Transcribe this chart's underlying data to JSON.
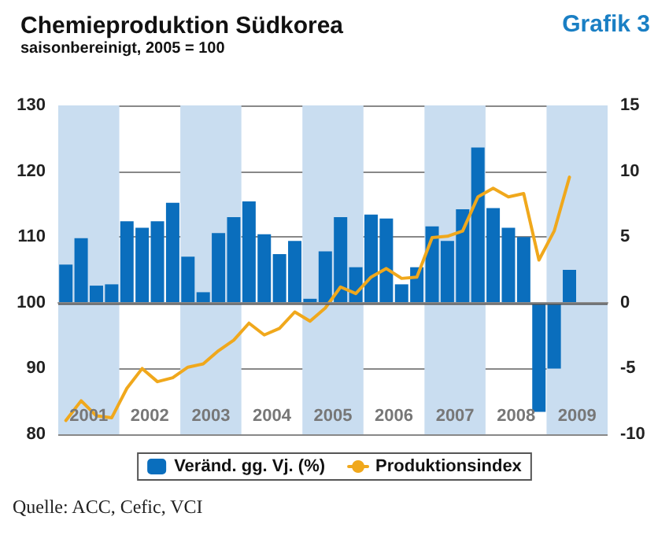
{
  "chart_data": {
    "type": "bar",
    "title": "Chemieproduktion Südkorea",
    "subtitle": "saisonbereinigt, 2005 = 100",
    "annotations": [
      "Grafik 3",
      "Quelle: ACC, Cefic, VCI"
    ],
    "x": [
      2001.125,
      2001.375,
      2001.625,
      2001.875,
      2002.125,
      2002.375,
      2002.625,
      2002.875,
      2003.125,
      2003.375,
      2003.625,
      2003.875,
      2004.125,
      2004.375,
      2004.625,
      2004.875,
      2005.125,
      2005.375,
      2005.625,
      2005.875,
      2006.125,
      2006.375,
      2006.625,
      2006.875,
      2007.125,
      2007.375,
      2007.625,
      2007.875,
      2008.125,
      2008.375,
      2008.625,
      2008.875,
      2009.125,
      2009.375
    ],
    "series": [
      {
        "name": "Veränd. gg. Vj. (%)",
        "axis": "y2",
        "color": "#0a6ebd",
        "values": [
          2.9,
          4.9,
          1.3,
          1.4,
          6.2,
          5.7,
          6.2,
          7.6,
          3.5,
          0.8,
          5.3,
          6.5,
          7.7,
          5.2,
          3.7,
          4.7,
          0.3,
          3.9,
          6.5,
          2.7,
          6.7,
          6.4,
          1.4,
          2.7,
          5.8,
          4.7,
          7.1,
          11.8,
          7.2,
          5.7,
          5.0,
          -8.3,
          -5.0,
          2.5
        ]
      },
      {
        "name": "Produktionsindex",
        "type": "line",
        "color": "#f0a81c",
        "line_style": "solid",
        "marker": "none",
        "values": [
          82.1,
          85.1,
          82.8,
          82.5,
          87.0,
          90.0,
          88.0,
          88.6,
          90.2,
          90.7,
          92.7,
          94.3,
          96.9,
          95.1,
          96.1,
          98.6,
          97.2,
          99.2,
          102.4,
          101.4,
          103.9,
          105.2,
          103.7,
          103.9,
          109.9,
          110.1,
          110.9,
          116.1,
          117.4,
          116.1,
          116.6,
          106.5,
          110.9,
          119.1
        ]
      }
    ],
    "xlim": [
      2001,
      2010
    ],
    "xticks": [
      {
        "value": 2001.5,
        "label": "2001"
      },
      {
        "value": 2002.5,
        "label": "2002"
      },
      {
        "value": 2003.5,
        "label": "2003"
      },
      {
        "value": 2004.5,
        "label": "2004"
      },
      {
        "value": 2005.5,
        "label": "2005"
      },
      {
        "value": 2006.5,
        "label": "2006"
      },
      {
        "value": 2007.5,
        "label": "2007"
      },
      {
        "value": 2008.5,
        "label": "2008"
      },
      {
        "value": 2009.5,
        "label": "2009"
      }
    ],
    "ylim": [
      80,
      130
    ],
    "yticks": [
      80,
      90,
      100,
      110,
      120,
      130
    ],
    "y2lim": [
      -10,
      15
    ],
    "y2ticks": [
      -10,
      -5,
      0,
      5,
      10,
      15
    ],
    "bands": [
      {
        "axis": "x",
        "from": 2001,
        "to": 2002,
        "color": "#c9ddf0"
      },
      {
        "axis": "x",
        "from": 2003,
        "to": 2004,
        "color": "#c9ddf0"
      },
      {
        "axis": "x",
        "from": 2005,
        "to": 2006,
        "color": "#c9ddf0"
      },
      {
        "axis": "x",
        "from": 2007,
        "to": 2008,
        "color": "#c9ddf0"
      },
      {
        "axis": "x",
        "from": 2009,
        "to": 2010,
        "color": "#c9ddf0"
      }
    ],
    "ref_lines": [
      {
        "axis": "y2",
        "value": 0,
        "color": "#555555"
      }
    ],
    "grid": "y",
    "legend": "bottom"
  }
}
